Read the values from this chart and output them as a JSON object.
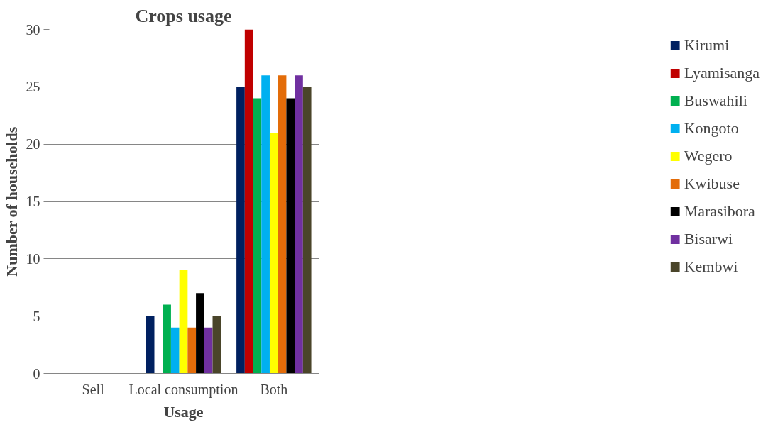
{
  "chart_data": {
    "type": "bar",
    "title": "Crops usage",
    "xlabel": "Usage",
    "ylabel": "Number of households",
    "categories": [
      "Sell",
      "Local consumption",
      "Both"
    ],
    "series": [
      {
        "name": "Kirumi",
        "color": "#002060",
        "values": [
          0,
          5,
          25
        ]
      },
      {
        "name": "Lyamisanga",
        "color": "#c00000",
        "values": [
          0,
          0,
          30
        ]
      },
      {
        "name": "Buswahili",
        "color": "#00b050",
        "values": [
          0,
          6,
          24
        ]
      },
      {
        "name": "Kongoto",
        "color": "#00b0f0",
        "values": [
          0,
          4,
          26
        ]
      },
      {
        "name": "Wegero",
        "color": "#ffff00",
        "values": [
          0,
          9,
          21
        ]
      },
      {
        "name": "Kwibuse",
        "color": "#e36c09",
        "values": [
          0,
          4,
          26
        ]
      },
      {
        "name": "Marasibora",
        "color": "#000000",
        "values": [
          0,
          7,
          24
        ]
      },
      {
        "name": "Bisarwi",
        "color": "#7030a0",
        "values": [
          0,
          4,
          26
        ]
      },
      {
        "name": "Kembwi",
        "color": "#4a452a",
        "values": [
          0,
          5,
          25
        ]
      }
    ],
    "ylim": [
      0,
      30
    ],
    "yticks": [
      0,
      5,
      10,
      15,
      20,
      25,
      30
    ],
    "grid": "y",
    "legend": "right"
  }
}
